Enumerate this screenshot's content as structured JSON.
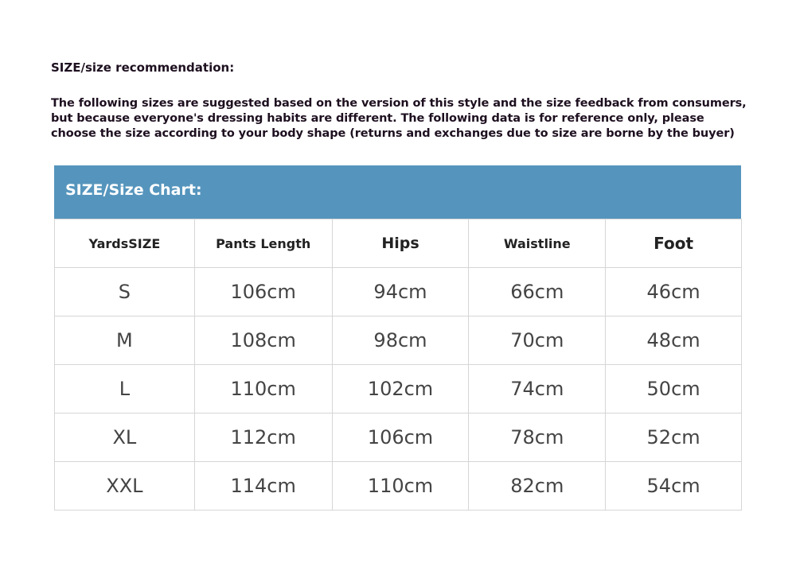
{
  "title": "SIZE/size recommendation:",
  "description": [
    "The following sizes are suggested based on the version of this style and the size feedback from consumers,",
    "but because everyone's dressing habits are different. The following data is for reference only, please",
    "choose the size according to your body shape (returns and exchanges due to size are borne by the buyer)"
  ],
  "chart_title": "SIZE/Size Chart:",
  "header_color": "#5595bd",
  "columns": [
    "YardsSIZE",
    "Pants Length",
    "Hips",
    "Waistline",
    "Foot"
  ],
  "rows": [
    [
      "S",
      "106cm",
      "94cm",
      "66cm",
      "46cm"
    ],
    [
      "M",
      "108cm",
      "98cm",
      "70cm",
      "48cm"
    ],
    [
      "L",
      "110cm",
      "102cm",
      "74cm",
      "50cm"
    ],
    [
      "XL",
      "112cm",
      "106cm",
      "78cm",
      "52cm"
    ],
    [
      "XXL",
      "114cm",
      "110cm",
      "82cm",
      "54cm"
    ]
  ]
}
